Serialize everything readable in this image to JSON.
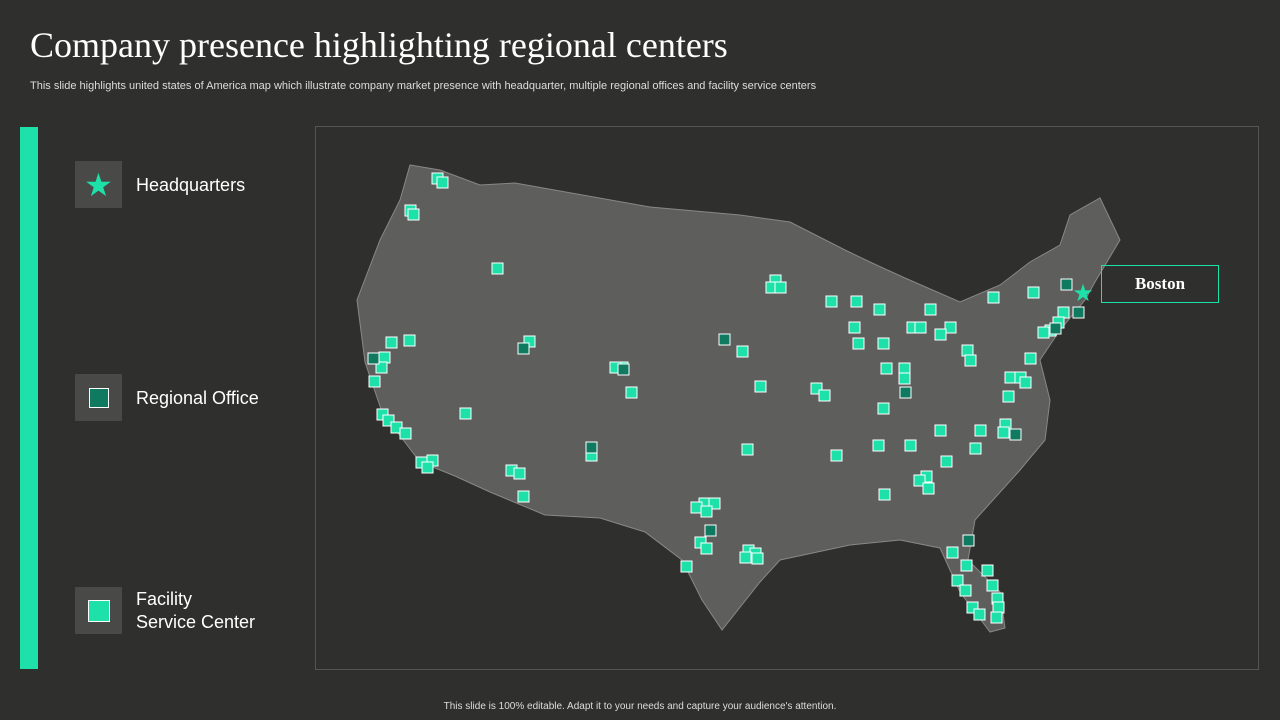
{
  "title": "Company presence highlighting regional centers",
  "subtitle": "This slide highlights united states of America map which illustrate company market presence with headquarter, multiple regional offices and facility service centers",
  "legend": [
    {
      "label": "Headquarters",
      "icon": "star-icon"
    },
    {
      "label": "Regional Office",
      "icon": "square-dark-icon"
    },
    {
      "label": "Facility\nService Center",
      "icon": "square-light-icon"
    }
  ],
  "callout": "Boston",
  "footer": "This slide is 100% editable. Adapt it to your needs and capture your audience's attention.",
  "colors": {
    "accent": "#1de1a8",
    "regional": "#0f7a60",
    "map": "#5e5e5c"
  }
}
